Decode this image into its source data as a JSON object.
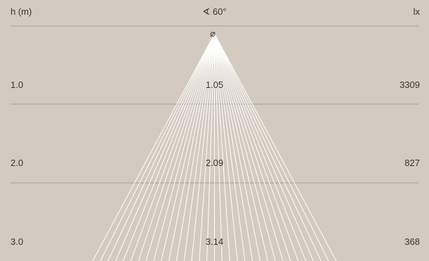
{
  "header": {
    "height_label": "h (m)",
    "angle_label": "∢ 60°",
    "lux_label": "lx"
  },
  "origin_symbol": "⌀",
  "rows": [
    {
      "height": "1.0",
      "diameter": "1.05",
      "lux": "3309"
    },
    {
      "height": "2.0",
      "diameter": "2.09",
      "lux": "827"
    },
    {
      "height": "3.0",
      "diameter": "3.14",
      "lux": "368"
    }
  ],
  "colors": {
    "background": "#d3cac0",
    "beam": "#ffffff",
    "gridline": "#a89f96",
    "text": "#3a3530"
  },
  "beam_angle_deg": 60
}
